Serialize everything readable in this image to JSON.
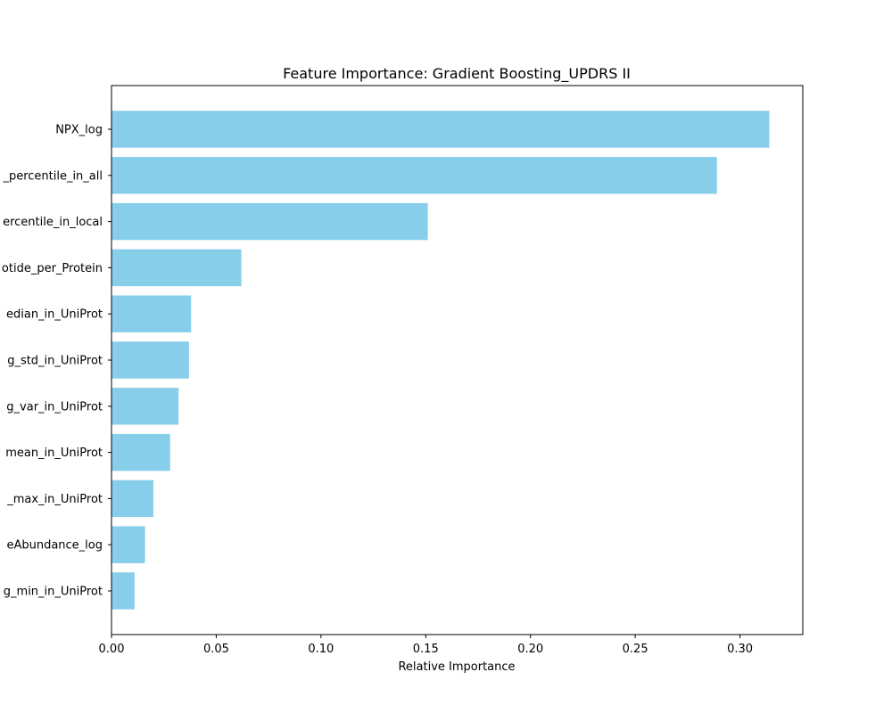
{
  "chart_data": {
    "type": "bar",
    "orientation": "horizontal",
    "title": "Feature Importance: Gradient Boosting_UPDRS II",
    "xlabel": "Relative Importance",
    "ylabel": "",
    "xlim": [
      0,
      0.33
    ],
    "xticks": [
      0.0,
      0.05,
      0.1,
      0.15,
      0.2,
      0.25,
      0.3
    ],
    "xtick_labels": [
      "0.00",
      "0.05",
      "0.10",
      "0.15",
      "0.20",
      "0.25",
      "0.30"
    ],
    "grid": false,
    "bar_color": "#87CEEB",
    "categories": [
      "NPX_log",
      "_percentile_in_all",
      "ercentile_in_local",
      "otide_per_Protein",
      "edian_in_UniProt",
      "g_std_in_UniProt",
      "g_var_in_UniProt",
      "mean_in_UniProt",
      "_max_in_UniProt",
      "eAbundance_log",
      "g_min_in_UniProt"
    ],
    "values": [
      0.314,
      0.289,
      0.151,
      0.062,
      0.038,
      0.037,
      0.032,
      0.028,
      0.02,
      0.016,
      0.011
    ]
  }
}
